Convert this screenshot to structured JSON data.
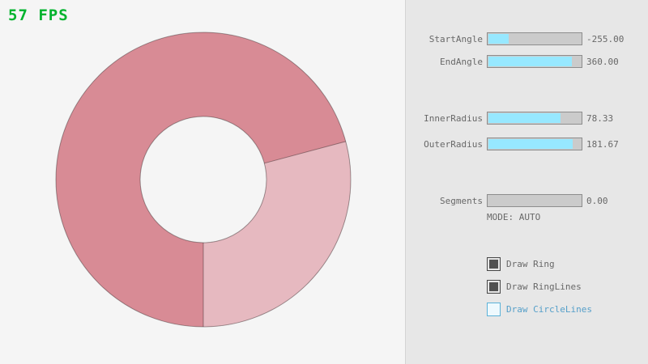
{
  "fps": {
    "text": "57 FPS",
    "color": "#00b32d"
  },
  "ring": {
    "dark_color": "#d88b95",
    "light_color": "#e6b9c0",
    "outline_color": "rgba(0,0,0,0.35)",
    "inner_radius": 78.33,
    "outer_radius": 181.67,
    "start_angle": -255,
    "end_angle": 360
  },
  "panel": {
    "sliders": [
      {
        "label": "StartAngle",
        "value": "-255.00",
        "width_pct": 21.7
      },
      {
        "label": "EndAngle",
        "value": "360.00",
        "width_pct": 90.0
      },
      {
        "label": "InnerRadius",
        "value": "78.33",
        "width_pct": 78.3
      },
      {
        "label": "OuterRadius",
        "value": "181.67",
        "width_pct": 90.8
      },
      {
        "label": "Segments",
        "value": "0.00",
        "width_pct": 0
      }
    ],
    "mode_text": "MODE: AUTO",
    "checkboxes": [
      {
        "label": "Draw Ring",
        "checked": true,
        "box_class": "checked",
        "row_class": ""
      },
      {
        "label": "Draw RingLines",
        "checked": true,
        "box_class": "checked",
        "row_class": ""
      },
      {
        "label": "Draw CircleLines",
        "checked": false,
        "box_class": "",
        "row_class": "focused"
      }
    ]
  }
}
